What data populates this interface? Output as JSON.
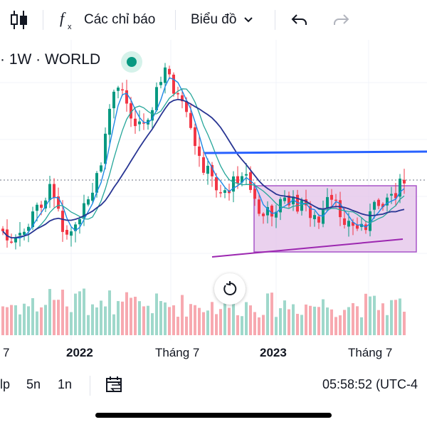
{
  "toolbar": {
    "candle_icon": "candles-icon",
    "indicators_icon": "fx-icon",
    "indicators_label": "Các chỉ báo",
    "chart_type_label": "Biểu đồ",
    "undo_icon": "undo-icon",
    "redo_icon": "redo-icon"
  },
  "chart": {
    "symbol_label": "· 1W · WORLD",
    "status_dot_color": "#089981",
    "up_color": "#089981",
    "down_color": "#f23645",
    "volume_up_color": "#f7a9b0",
    "volume_down_color": "#9fd8cb",
    "trendline_color": "#2962ff",
    "range_box_color": "#ce93d8",
    "reset_icon": "reset-icon"
  },
  "time_axis": {
    "labels": [
      "7",
      "2022",
      "Tháng 7",
      "2023",
      "Tháng 7"
    ]
  },
  "bottom_bar": {
    "intervals": [
      "lp",
      "5n",
      "1n"
    ],
    "range_icon": "date-range-icon",
    "clock": "05:58:52 (UTC-4"
  },
  "colors": {
    "accent": "#2962ff",
    "text": "#131722"
  }
}
